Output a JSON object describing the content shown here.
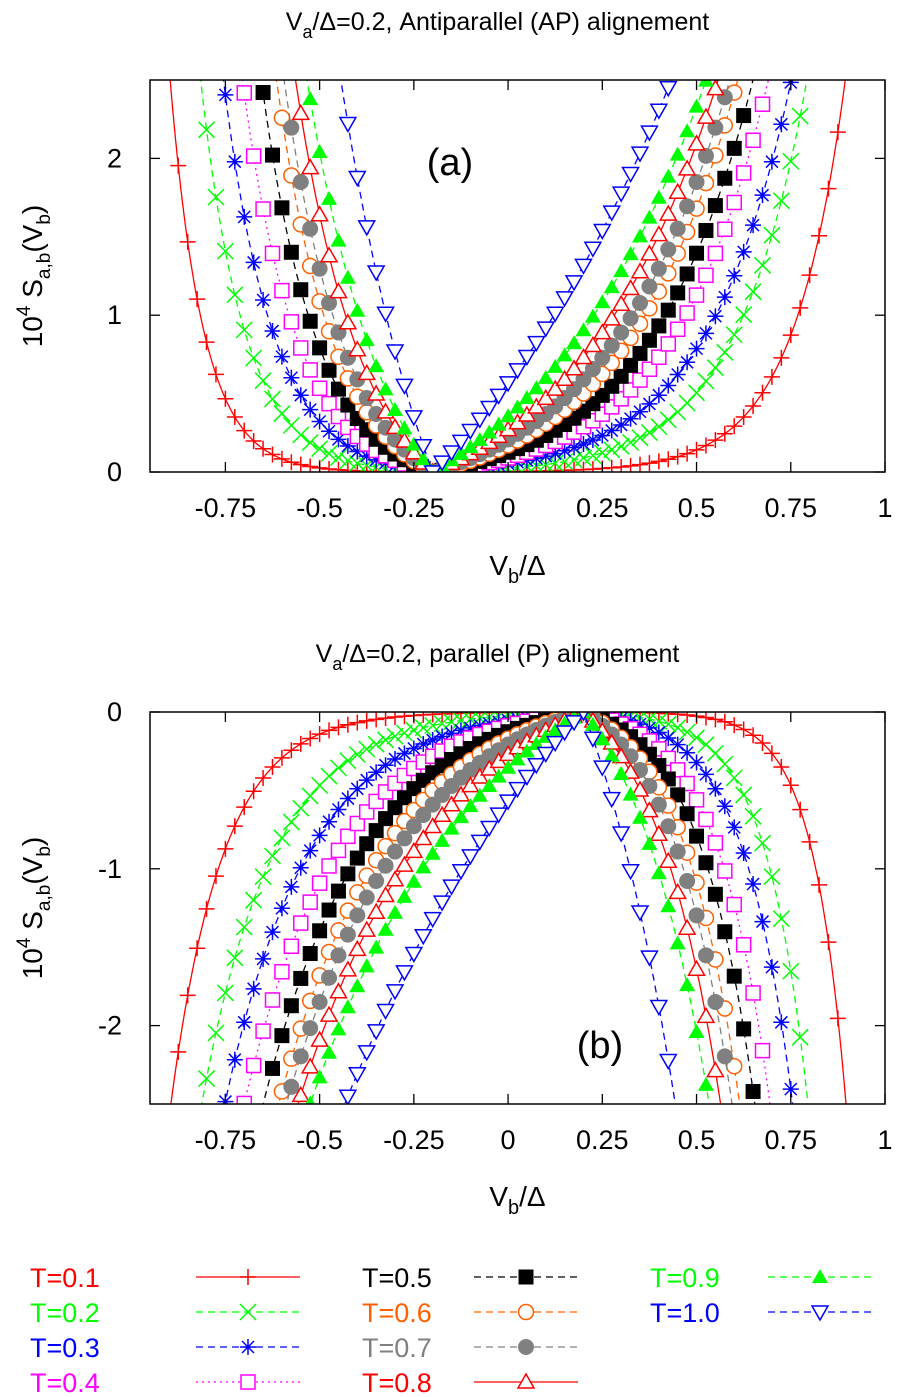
{
  "chart_data": [
    {
      "type": "line",
      "panel": "a",
      "title": "Va/Δ=0.2, Antiparallel (AP) alignement",
      "title_parts": {
        "v": "V",
        "sub": "a",
        "rest": "/Δ=0.2, Antiparallel (AP) alignement"
      },
      "annotation": "(a)",
      "xlabel": {
        "v": "V",
        "sub": "b",
        "rest": "/Δ"
      },
      "ylabel": {
        "pre": "10",
        "sup": "4",
        "mid": " S",
        "sub": "a,b",
        "rest": "(V",
        "sub2": "b",
        "end": ")"
      },
      "xlim": [
        -0.95,
        1.0
      ],
      "ylim": [
        0,
        2.5
      ],
      "xticks": [
        -0.75,
        -0.5,
        -0.25,
        0,
        0.25,
        0.5,
        0.75,
        1
      ],
      "xtick_labels": [
        "-0.75",
        "-0.5",
        "-0.25",
        "0",
        "0.25",
        "0.5",
        "0.75",
        "1"
      ],
      "yticks": [
        0,
        1,
        2
      ],
      "ytick_labels": [
        "0",
        "1",
        "2"
      ],
      "vertex": -0.2,
      "sign": 1,
      "grid": false
    },
    {
      "type": "line",
      "panel": "b",
      "title": "Va/Δ=0.2, parallel (P) alignement",
      "title_parts": {
        "v": "V",
        "sub": "a",
        "rest": "/Δ=0.2, parallel (P) alignement"
      },
      "annotation": "(b)",
      "xlabel": {
        "v": "V",
        "sub": "b",
        "rest": "/Δ"
      },
      "ylabel": {
        "pre": "10",
        "sup": "4",
        "mid": " S",
        "sub": "a,b",
        "rest": "(V",
        "sub2": "b",
        "end": ")"
      },
      "xlim": [
        -0.95,
        1.0
      ],
      "ylim": [
        -2.5,
        0
      ],
      "xticks": [
        -0.75,
        -0.5,
        -0.25,
        0,
        0.25,
        0.5,
        0.75,
        1
      ],
      "xtick_labels": [
        "-0.75",
        "-0.5",
        "-0.25",
        "0",
        "0.25",
        "0.5",
        "0.75",
        "1"
      ],
      "yticks": [
        0,
        -1,
        -2
      ],
      "ytick_labels": [
        "0",
        "-1",
        "-2"
      ],
      "vertex": 0.2,
      "sign": -1,
      "grid": false
    }
  ],
  "series": [
    {
      "name": "T=0.1",
      "color": "#ff0000",
      "marker": "plus",
      "dash": "solid",
      "k": 8.0,
      "x_up": 0.9,
      "x_lo": -0.9
    },
    {
      "name": "T=0.2",
      "color": "#00ff00",
      "marker": "cross",
      "dash": "dash",
      "k": 5.4,
      "x_up": 0.8,
      "x_lo": -0.82
    },
    {
      "name": "T=0.3",
      "color": "#0000ff",
      "marker": "asterisk",
      "dash": "dash",
      "k": 4.3,
      "x_up": 0.76,
      "x_lo": -0.76
    },
    {
      "name": "T=0.4",
      "color": "#ff00ff",
      "marker": "square-open",
      "dash": "dot",
      "k": 3.6,
      "x_up": 0.7,
      "x_lo": -0.71
    },
    {
      "name": "T=0.5",
      "color": "#000000",
      "marker": "square-filled",
      "dash": "dash",
      "k": 3.15,
      "x_up": 0.66,
      "x_lo": -0.66
    },
    {
      "name": "T=0.6",
      "color": "#ff6000",
      "marker": "circle-open",
      "dash": "dash",
      "k": 2.75,
      "x_up": 0.62,
      "x_lo": -0.62
    },
    {
      "name": "T=0.7",
      "color": "#808080",
      "marker": "circle-filled",
      "dash": "dash",
      "k": 2.45,
      "x_up": 0.6,
      "x_lo": -0.6
    },
    {
      "name": "T=0.8",
      "color": "#ff0000",
      "marker": "triangle-open",
      "dash": "solid",
      "k": 2.05,
      "x_up": 0.57,
      "x_lo": -0.57
    },
    {
      "name": "T=0.9",
      "color": "#00ff00",
      "marker": "triangle-filled",
      "dash": "dash",
      "k": 1.6,
      "x_up": 0.54,
      "x_lo": -0.54
    },
    {
      "name": "T=1.0",
      "color": "#0000ff",
      "marker": "triangle-down-open",
      "dash": "dash",
      "k": 0.9,
      "x_up": 0.45,
      "x_lo": -0.45
    }
  ]
}
